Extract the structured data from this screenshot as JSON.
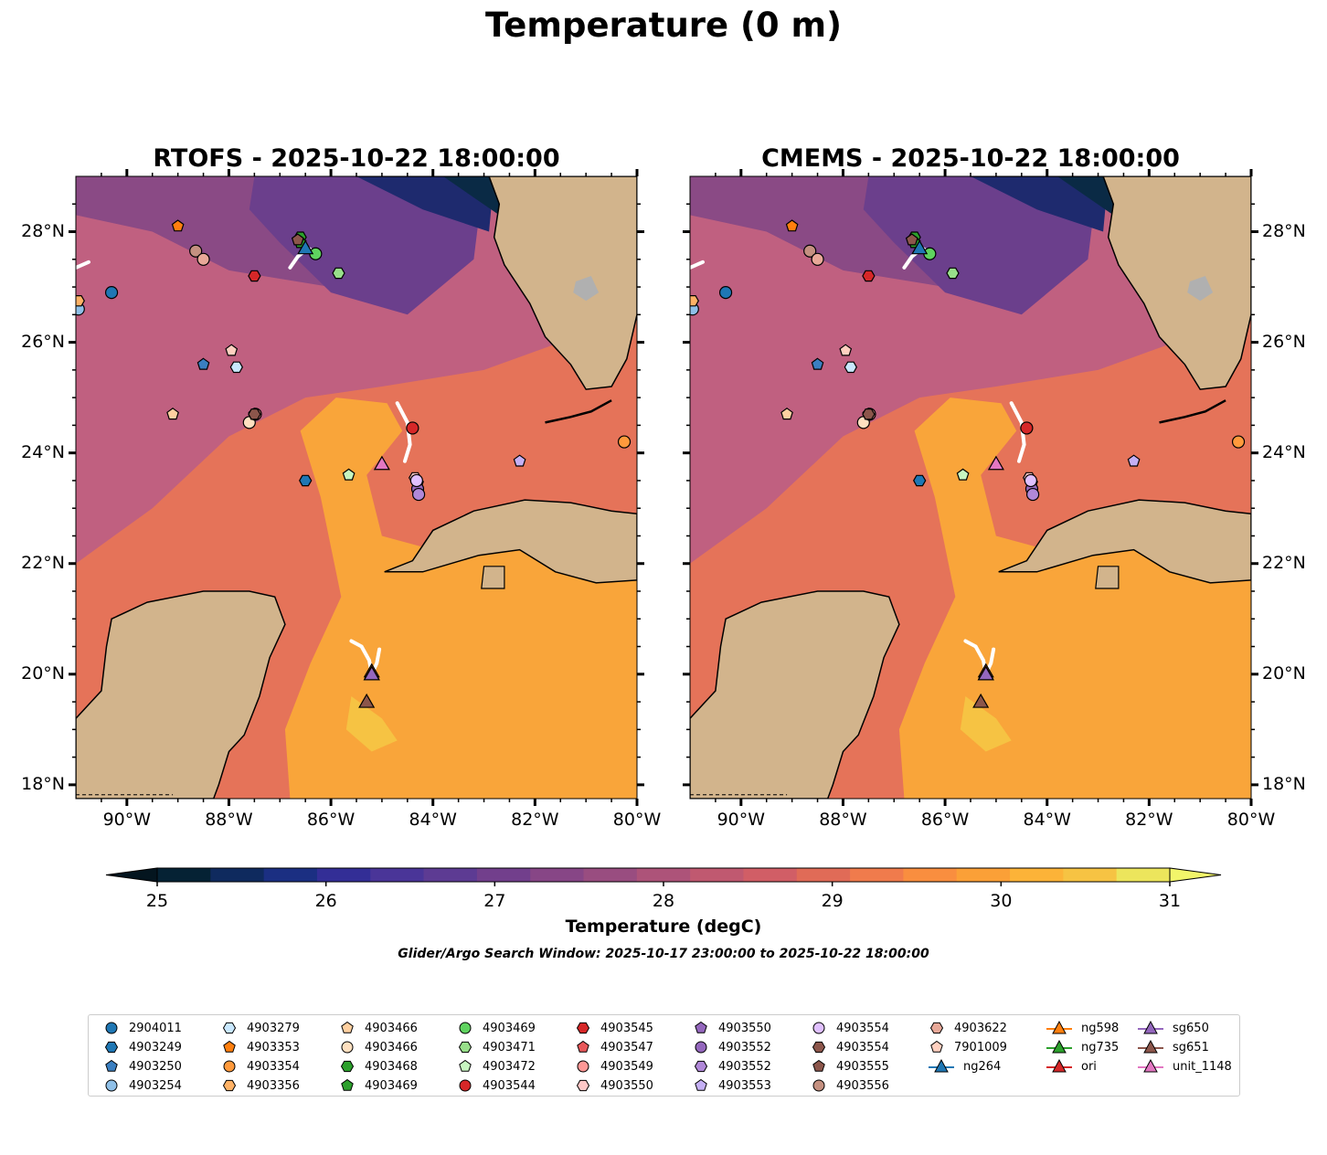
{
  "title": "Temperature (0 m)",
  "panels": [
    {
      "title": "RTOFS - 2025-10-22 18:00:00"
    },
    {
      "title": "CMEMS - 2025-10-22 18:00:00"
    }
  ],
  "map": {
    "lon_range": [
      -91.0,
      -80.0
    ],
    "lat_range": [
      17.75,
      29.0
    ],
    "lat_ticks": [
      {
        "value": 28,
        "label": "28°N"
      },
      {
        "value": 26,
        "label": "26°N"
      },
      {
        "value": 24,
        "label": "24°N"
      },
      {
        "value": 22,
        "label": "22°N"
      },
      {
        "value": 20,
        "label": "20°N"
      },
      {
        "value": 18,
        "label": "18°N"
      }
    ],
    "lon_ticks": [
      {
        "value": -90,
        "label": "90°W"
      },
      {
        "value": -88,
        "label": "88°W"
      },
      {
        "value": -86,
        "label": "86°W"
      },
      {
        "value": -84,
        "label": "84°W"
      },
      {
        "value": -82,
        "label": "82°W"
      },
      {
        "value": -80,
        "label": "80°W"
      }
    ],
    "colors": {
      "land": "#d2b48c",
      "water_outer": "#c06080",
      "water_mid": "#e57359",
      "water_warm": "#f9a53a",
      "water_cool": "#6b3f8c",
      "water_cold": "#1e2a6e",
      "coastline": "#000000",
      "glider_track": "#ffffff"
    },
    "markers": [
      {
        "label": "2904011",
        "lon": -90.3,
        "lat": 26.9,
        "shape": "circle",
        "color": "#1f77b4"
      },
      {
        "label": "4903249",
        "lon": -86.5,
        "lat": 23.5,
        "shape": "hexagon",
        "color": "#1f77b4"
      },
      {
        "label": "4903250",
        "lon": -88.5,
        "lat": 25.6,
        "shape": "pentagon",
        "color": "#3a7fc1"
      },
      {
        "label": "4903254",
        "lon": -90.95,
        "lat": 26.6,
        "shape": "circle",
        "color": "#8fc0e8"
      },
      {
        "label": "4903279",
        "lon": -87.85,
        "lat": 25.55,
        "shape": "hexagon",
        "color": "#c9e8ff"
      },
      {
        "label": "4903353",
        "lon": -89.0,
        "lat": 28.1,
        "shape": "pentagon",
        "color": "#ff7f0e"
      },
      {
        "label": "4903354",
        "lon": -80.25,
        "lat": 24.2,
        "shape": "circle",
        "color": "#ff9a3c"
      },
      {
        "label": "4903356",
        "lon": -90.95,
        "lat": 26.75,
        "shape": "hexagon",
        "color": "#ffb266"
      },
      {
        "label": "4903466",
        "lon": -89.1,
        "lat": 24.7,
        "shape": "pentagon",
        "color": "#ffd0a0"
      },
      {
        "label": "4903466",
        "lon": -87.6,
        "lat": 24.55,
        "shape": "circle",
        "color": "#ffe0c0"
      },
      {
        "label": "4903468",
        "lon": -86.6,
        "lat": 27.9,
        "shape": "hexagon",
        "color": "#2ca02c"
      },
      {
        "label": "4903469",
        "lon": -86.6,
        "lat": 27.8,
        "shape": "pentagon",
        "color": "#2ca02c"
      },
      {
        "label": "4903469",
        "lon": -86.3,
        "lat": 27.6,
        "shape": "circle",
        "color": "#5fd35f"
      },
      {
        "label": "4903471",
        "lon": -85.85,
        "lat": 27.25,
        "shape": "hexagon",
        "color": "#98df8a"
      },
      {
        "label": "4903472",
        "lon": -85.65,
        "lat": 23.6,
        "shape": "pentagon",
        "color": "#c7f5c0"
      },
      {
        "label": "4903544",
        "lon": -84.4,
        "lat": 24.45,
        "shape": "circle",
        "color": "#d62728"
      },
      {
        "label": "4903545",
        "lon": -87.5,
        "lat": 27.2,
        "shape": "hexagon",
        "color": "#d62728"
      },
      {
        "label": "4903547",
        "lon": -87.5,
        "lat": 24.7,
        "shape": "pentagon",
        "color": "#e8585a"
      },
      {
        "label": "4903549",
        "lon": -87.48,
        "lat": 24.7,
        "shape": "circle",
        "color": "#ff9896"
      },
      {
        "label": "4903550",
        "lon": -84.35,
        "lat": 23.55,
        "shape": "hexagon",
        "color": "#ffc8c7"
      },
      {
        "label": "4903550",
        "lon": -84.3,
        "lat": 23.45,
        "shape": "pentagon",
        "color": "#9467bd"
      },
      {
        "label": "4903552",
        "lon": -84.3,
        "lat": 23.35,
        "shape": "circle",
        "color": "#9467bd"
      },
      {
        "label": "4903552",
        "lon": -84.28,
        "lat": 23.25,
        "shape": "circle",
        "color": "#b088d8"
      },
      {
        "label": "4903553",
        "lon": -82.3,
        "lat": 23.85,
        "shape": "pentagon",
        "color": "#c5b0f5"
      },
      {
        "label": "4903554",
        "lon": -84.32,
        "lat": 23.5,
        "shape": "circle",
        "color": "#e0c0ff"
      },
      {
        "label": "4903554",
        "lon": -87.5,
        "lat": 24.7,
        "shape": "hexagon",
        "color": "#8c564b"
      },
      {
        "label": "4903555",
        "lon": -86.65,
        "lat": 27.85,
        "shape": "pentagon",
        "color": "#8c564b"
      },
      {
        "label": "4903556",
        "lon": -88.65,
        "lat": 27.65,
        "shape": "circle",
        "color": "#c49080"
      },
      {
        "label": "4903622",
        "lon": -88.5,
        "lat": 27.5,
        "shape": "circle",
        "color": "#e8a898"
      },
      {
        "label": "7901009",
        "lon": -87.95,
        "lat": 25.85,
        "shape": "pentagon",
        "color": "#ffd0c0"
      }
    ],
    "gliders": [
      {
        "label": "ng264",
        "lon": -86.5,
        "lat": 27.7,
        "color": "#1f77b4",
        "track": [
          [
            -86.8,
            27.35
          ],
          [
            -86.65,
            27.55
          ],
          [
            -86.45,
            27.7
          ],
          [
            -86.25,
            27.6
          ]
        ]
      },
      {
        "label": "ng598",
        "lon": -85.2,
        "lat": 20.05,
        "color": "#ff7f0e",
        "track": [
          [
            -85.6,
            20.6
          ],
          [
            -85.4,
            20.5
          ],
          [
            -85.25,
            20.25
          ],
          [
            -85.2,
            20.0
          ]
        ]
      },
      {
        "label": "ng735",
        "lon": -85.2,
        "lat": 20.0,
        "color": "#2ca02c",
        "track": [
          [
            -85.05,
            20.45
          ],
          [
            -85.1,
            20.2
          ],
          [
            -85.2,
            20.0
          ]
        ]
      },
      {
        "label": "ori",
        "lon": -85.2,
        "lat": 20.0,
        "color": "#d62728",
        "track": []
      },
      {
        "label": "sg650",
        "lon": -85.2,
        "lat": 20.0,
        "color": "#9467bd",
        "track": []
      },
      {
        "label": "sg651",
        "lon": -85.3,
        "lat": 19.5,
        "color": "#8c564b",
        "track": []
      },
      {
        "label": "unit_1148",
        "lon": -85.0,
        "lat": 23.8,
        "color": "#e377c2",
        "track": [
          [
            -84.7,
            24.9
          ],
          [
            -84.5,
            24.55
          ],
          [
            -84.45,
            24.15
          ],
          [
            -84.55,
            23.85
          ]
        ]
      }
    ],
    "offmap_track": [
      [
        -91.0,
        27.35
      ],
      [
        -90.75,
        27.45
      ]
    ]
  },
  "colorbar": {
    "label": "Temperature (degC)",
    "ticks": [
      25,
      26,
      27,
      28,
      29,
      30,
      31
    ],
    "vmin": 25,
    "vmax": 31,
    "colors": [
      "#052234",
      "#0f2a5e",
      "#1b2f82",
      "#332e96",
      "#4a3598",
      "#5d3b93",
      "#723f8c",
      "#874686",
      "#994d80",
      "#ad5379",
      "#c05970",
      "#d15e66",
      "#e06b57",
      "#f07b4c",
      "#f98e3f",
      "#fba037",
      "#fcb338",
      "#f6c343",
      "#ece55c"
    ],
    "under_color": "#04151f",
    "over_color": "#f2f56a"
  },
  "search_window": "Glider/Argo Search Window: 2025-10-17 23:00:00 to 2025-10-22 18:00:00",
  "legend": {
    "columns": [
      [
        {
          "label": "2904011",
          "shape": "circle",
          "color": "#1f77b4"
        },
        {
          "label": "4903249",
          "shape": "hexagon",
          "color": "#1f77b4"
        },
        {
          "label": "4903250",
          "shape": "pentagon",
          "color": "#3a7fc1"
        },
        {
          "label": "4903254",
          "shape": "circle",
          "color": "#8fc0e8"
        }
      ],
      [
        {
          "label": "4903279",
          "shape": "hexagon",
          "color": "#c9e8ff"
        },
        {
          "label": "4903353",
          "shape": "pentagon",
          "color": "#ff7f0e"
        },
        {
          "label": "4903354",
          "shape": "circle",
          "color": "#ff9a3c"
        },
        {
          "label": "4903356",
          "shape": "hexagon",
          "color": "#ffb266"
        }
      ],
      [
        {
          "label": "4903466",
          "shape": "pentagon",
          "color": "#ffd0a0"
        },
        {
          "label": "4903466",
          "shape": "circle",
          "color": "#ffe0c0"
        },
        {
          "label": "4903468",
          "shape": "hexagon",
          "color": "#2ca02c"
        },
        {
          "label": "4903469",
          "shape": "pentagon",
          "color": "#2ca02c"
        }
      ],
      [
        {
          "label": "4903469",
          "shape": "circle",
          "color": "#5fd35f"
        },
        {
          "label": "4903471",
          "shape": "hexagon",
          "color": "#98df8a"
        },
        {
          "label": "4903472",
          "shape": "pentagon",
          "color": "#c7f5c0"
        },
        {
          "label": "4903544",
          "shape": "circle",
          "color": "#d62728"
        }
      ],
      [
        {
          "label": "4903545",
          "shape": "hexagon",
          "color": "#d62728"
        },
        {
          "label": "4903547",
          "shape": "pentagon",
          "color": "#e8585a"
        },
        {
          "label": "4903549",
          "shape": "circle",
          "color": "#ff9896"
        },
        {
          "label": "4903550",
          "shape": "hexagon",
          "color": "#ffc8c7"
        }
      ],
      [
        {
          "label": "4903550",
          "shape": "pentagon",
          "color": "#9467bd"
        },
        {
          "label": "4903552",
          "shape": "circle",
          "color": "#9467bd"
        },
        {
          "label": "4903552",
          "shape": "hexagon",
          "color": "#b088d8"
        },
        {
          "label": "4903553",
          "shape": "pentagon",
          "color": "#c5b0f5"
        }
      ],
      [
        {
          "label": "4903554",
          "shape": "circle",
          "color": "#e0c0ff"
        },
        {
          "label": "4903554",
          "shape": "hexagon",
          "color": "#8c564b"
        },
        {
          "label": "4903555",
          "shape": "pentagon",
          "color": "#8c564b"
        },
        {
          "label": "4903556",
          "shape": "circle",
          "color": "#c49080"
        }
      ],
      [
        {
          "label": "4903622",
          "shape": "hexagon",
          "color": "#e8a898"
        },
        {
          "label": "7901009",
          "shape": "pentagon",
          "color": "#ffd0c0"
        },
        {
          "label": "ng264",
          "shape": "triangle-line",
          "color": "#1f77b4"
        }
      ],
      [
        {
          "label": "ng598",
          "shape": "triangle-line",
          "color": "#ff7f0e"
        },
        {
          "label": "ng735",
          "shape": "triangle-line",
          "color": "#2ca02c"
        },
        {
          "label": "ori",
          "shape": "triangle-line",
          "color": "#d62728"
        }
      ],
      [
        {
          "label": "sg650",
          "shape": "triangle-line",
          "color": "#9467bd"
        },
        {
          "label": "sg651",
          "shape": "triangle-line",
          "color": "#8c564b"
        },
        {
          "label": "unit_1148",
          "shape": "triangle-line",
          "color": "#e377c2"
        }
      ]
    ]
  }
}
